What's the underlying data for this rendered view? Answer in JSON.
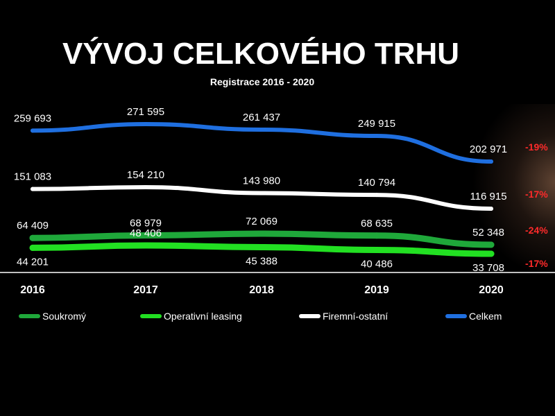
{
  "chart_data": {
    "type": "line",
    "title": "VÝVOJ CELKOVÉHO TRHU",
    "subtitle": "Registrace 2016 - 2020",
    "categories": [
      "2016",
      "2017",
      "2018",
      "2019",
      "2020"
    ],
    "legend_position": "bottom",
    "grid": false,
    "colors": {
      "background": "#000000",
      "change": "#ff2a2a",
      "axis": "#ffffff"
    },
    "series": [
      {
        "name": "Celkem",
        "color": "#1f6fe0",
        "values": [
          259693,
          271595,
          261437,
          249915,
          202971
        ],
        "labels": [
          "259 693",
          "271 595",
          "261 437",
          "249 915",
          "202 971"
        ],
        "change": "-19%"
      },
      {
        "name": "Firemní-ostatní",
        "color": "#ffffff",
        "values": [
          151083,
          154210,
          143980,
          140794,
          116915
        ],
        "labels": [
          "151 083",
          "154 210",
          "143 980",
          "140 794",
          "116 915"
        ],
        "change": "-17%"
      },
      {
        "name": "Soukromý",
        "color": "#1fa83a",
        "values": [
          64409,
          68979,
          72069,
          68635,
          52348
        ],
        "labels": [
          "64 409",
          "68 979",
          "72 069",
          "68 635",
          "52 348"
        ],
        "change": "-24%"
      },
      {
        "name": "Operativní leasing",
        "color": "#22e022",
        "values": [
          44201,
          48406,
          45388,
          40486,
          33708
        ],
        "labels": [
          "44 201",
          "48 406",
          "45 388",
          "40 486",
          "33 708"
        ],
        "change": "-17%"
      }
    ],
    "legend_order": [
      "Soukromý",
      "Operativní leasing",
      "Firemní-ostatní",
      "Celkem"
    ]
  }
}
